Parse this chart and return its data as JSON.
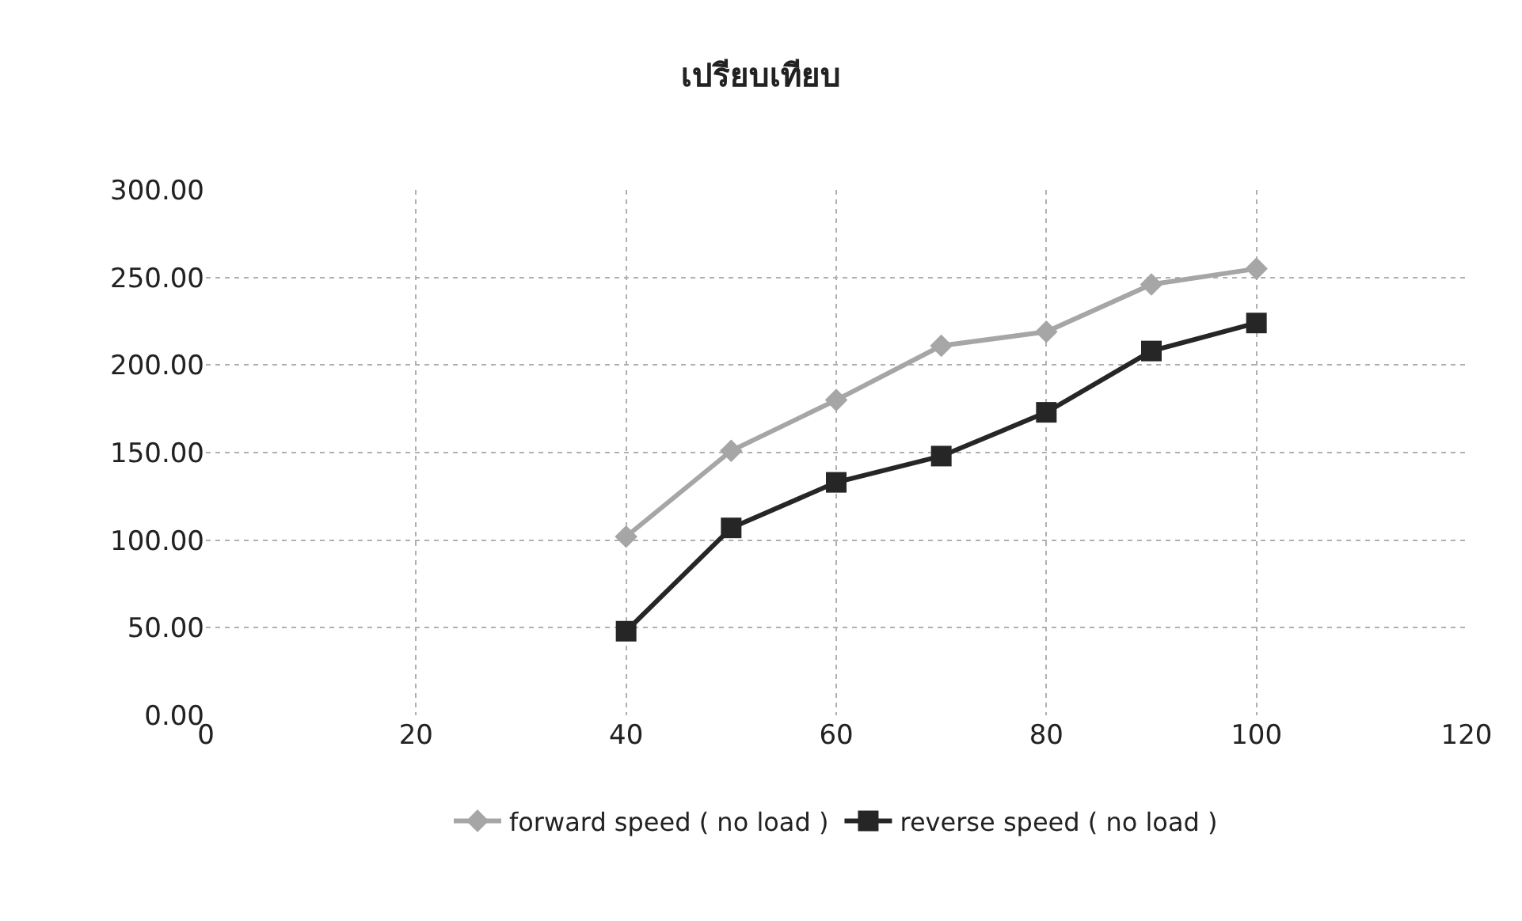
{
  "chart_data": {
    "type": "line",
    "title": "เปรียบเทียบ",
    "x": [
      40,
      50,
      60,
      70,
      80,
      90,
      100
    ],
    "series": [
      {
        "name": "forward speed ( no load )",
        "color": "#a6a6a6",
        "marker": "diamond",
        "values": [
          102,
          151,
          180,
          211,
          219,
          246,
          255
        ]
      },
      {
        "name": "reverse speed ( no load )",
        "color": "#262626",
        "marker": "square",
        "values": [
          48,
          107,
          133,
          148,
          173,
          208,
          224
        ]
      }
    ],
    "xlim": [
      0,
      120
    ],
    "xticks": [
      0,
      20,
      40,
      60,
      80,
      100,
      120
    ],
    "ylim": [
      0,
      300
    ],
    "yticks": [
      {
        "value": 0,
        "label": "0.00"
      },
      {
        "value": 50,
        "label": "50.00"
      },
      {
        "value": 100,
        "label": "100.00"
      },
      {
        "value": 150,
        "label": "150.00"
      },
      {
        "value": 200,
        "label": "200.00"
      },
      {
        "value": 250,
        "label": "250.00"
      },
      {
        "value": 300,
        "label": "300.00"
      }
    ],
    "grid": true,
    "legend": "bottom"
  }
}
